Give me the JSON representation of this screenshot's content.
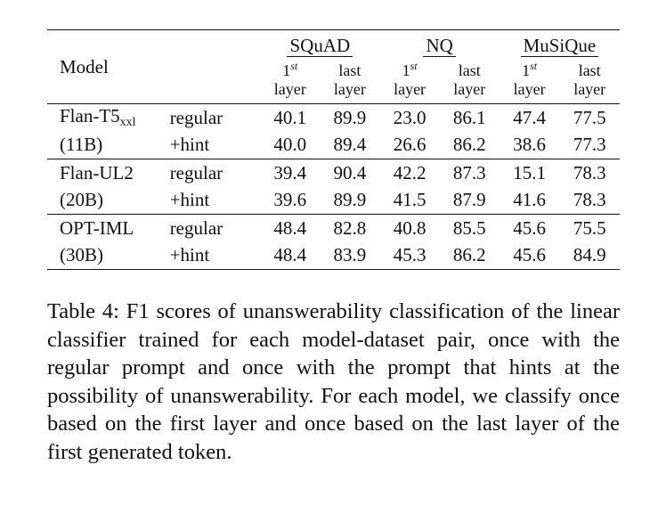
{
  "table": {
    "model_header": "Model",
    "datasets": [
      "SQuAD",
      "NQ",
      "MuSiQue"
    ],
    "layer_first_sup": "st",
    "layer_first_num": "1",
    "layer_first_word": "layer",
    "layer_last_top": "last",
    "layer_last_bottom": "layer",
    "groups": [
      {
        "model_base": "Flan-T5",
        "model_sub": "xxl",
        "size": "(11B)",
        "rows": [
          {
            "prompt": "regular",
            "values": [
              "40.1",
              "89.9",
              "23.0",
              "86.1",
              "47.4",
              "77.5"
            ]
          },
          {
            "prompt": "+hint",
            "values": [
              "40.0",
              "89.4",
              "26.6",
              "86.2",
              "38.6",
              "77.3"
            ]
          }
        ]
      },
      {
        "model_base": "Flan-UL2",
        "model_sub": "",
        "size": "(20B)",
        "rows": [
          {
            "prompt": "regular",
            "values": [
              "39.4",
              "90.4",
              "42.2",
              "87.3",
              "15.1",
              "78.3"
            ]
          },
          {
            "prompt": "+hint",
            "values": [
              "39.6",
              "89.9",
              "41.5",
              "87.9",
              "41.6",
              "78.3"
            ]
          }
        ]
      },
      {
        "model_base": "OPT-IML",
        "model_sub": "",
        "size": "(30B)",
        "rows": [
          {
            "prompt": "regular",
            "values": [
              "48.4",
              "82.8",
              "40.8",
              "85.5",
              "45.6",
              "75.5"
            ]
          },
          {
            "prompt": "+hint",
            "values": [
              "48.4",
              "83.9",
              "45.3",
              "86.2",
              "45.6",
              "84.9"
            ]
          }
        ]
      }
    ]
  },
  "caption": "Table 4: F1 scores of unanswerability classification of the linear classifier trained for each model-dataset pair, once with the regular prompt and once with the prompt that hints at the possibility of unanswerability. For each model, we classify once based on the first layer and once based on the last layer of the first generated token."
}
